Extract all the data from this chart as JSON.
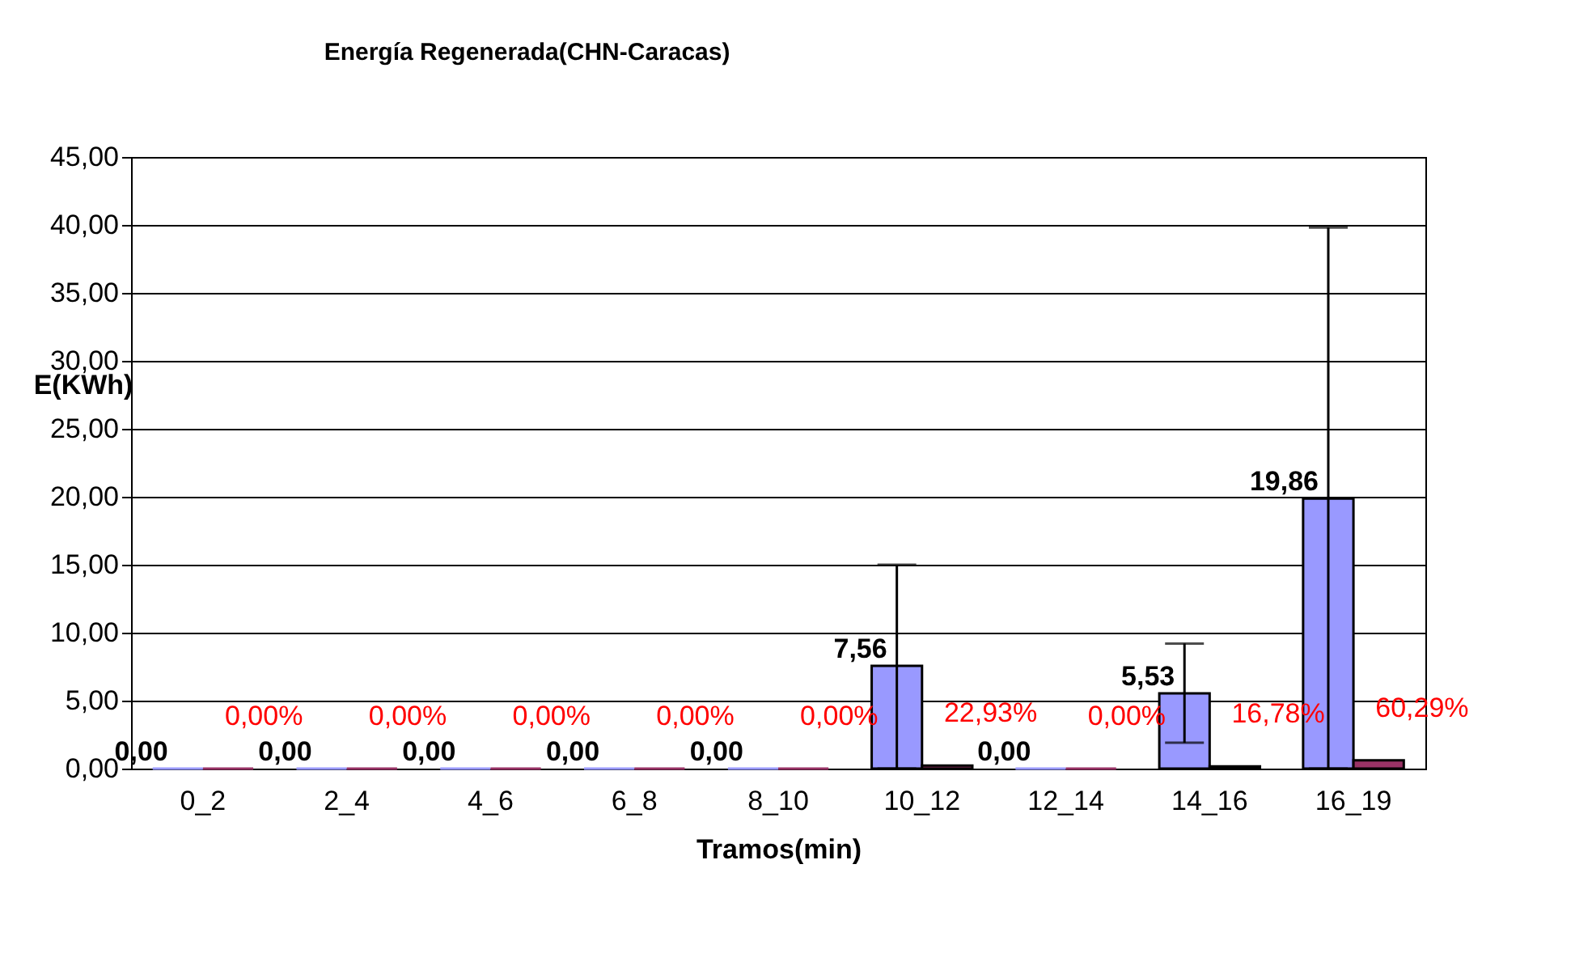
{
  "chart_data": {
    "type": "bar",
    "title": "Energía Regenerada(CHN-Caracas)",
    "xlabel": "Tramos(min)",
    "ylabel": "E(KWh)",
    "categories": [
      "0_2",
      "2_4",
      "4_6",
      "6_8",
      "8_10",
      "10_12",
      "12_14",
      "14_16",
      "16_19"
    ],
    "series": [
      {
        "color": "#9999ff",
        "values": [
          0,
          0,
          0,
          0,
          0,
          7.56,
          0,
          5.53,
          19.86
        ],
        "value_labels": [
          "0,00",
          "0,00",
          "0,00",
          "0,00",
          "0,00",
          "7,56",
          "0,00",
          "5,53",
          "19,86"
        ],
        "errors": [
          null,
          null,
          null,
          null,
          null,
          [
            0,
            15.0
          ],
          null,
          [
            1.9,
            9.2
          ],
          [
            0,
            39.8
          ]
        ]
      },
      {
        "color": "#993366",
        "values": [
          0,
          0,
          0,
          0,
          0,
          0.2293,
          0,
          0.1678,
          0.6029
        ],
        "value_labels": [
          "0,00%",
          "0,00%",
          "0,00%",
          "0,00%",
          "0,00%",
          "22,93%",
          "0,00%",
          "16,78%",
          "60,29%"
        ]
      }
    ],
    "ylim": [
      0,
      45
    ],
    "yticks": [
      {
        "value": 0,
        "label": "0,00"
      },
      {
        "value": 5,
        "label": "5,00"
      },
      {
        "value": 10,
        "label": "10,00"
      },
      {
        "value": 15,
        "label": "15,00"
      },
      {
        "value": 20,
        "label": "20,00"
      },
      {
        "value": 25,
        "label": "25,00"
      },
      {
        "value": 30,
        "label": "30,00"
      },
      {
        "value": 35,
        "label": "35,00"
      },
      {
        "value": 40,
        "label": "40,00"
      },
      {
        "value": 45,
        "label": "45,00"
      }
    ],
    "grid": "y",
    "legend": false
  }
}
